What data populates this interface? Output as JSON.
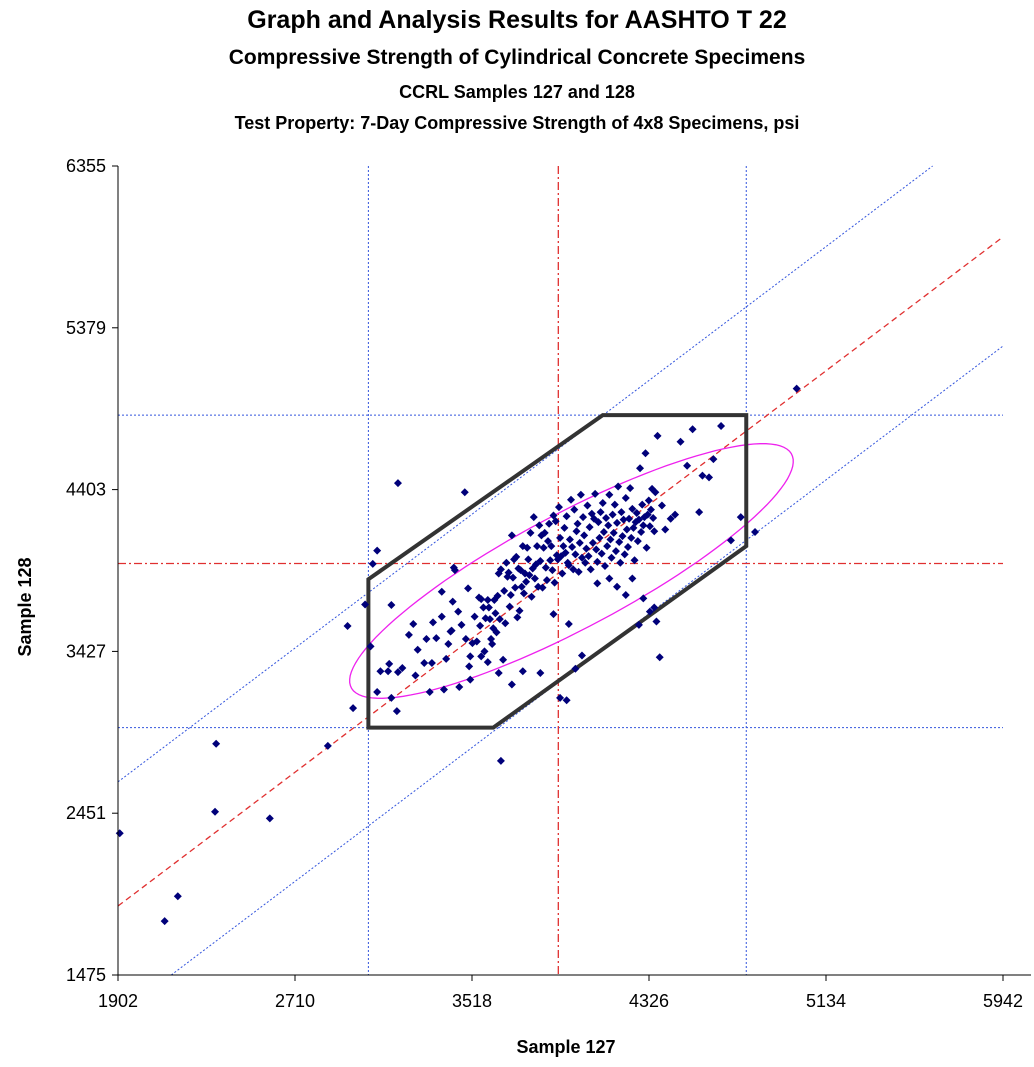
{
  "chart_data": {
    "type": "scatter",
    "title": "Graph and Analysis Results for AASHTO T 22",
    "subtitle": "Compressive Strength of Cylindrical Concrete Specimens",
    "subtitle2": "CCRL Samples 127 and 128",
    "subtitle3": "Test Property: 7-Day Compressive Strength of 4x8 Specimens, psi",
    "xlabel": "Sample 127",
    "ylabel": "Sample 128",
    "xlim": [
      1902,
      5942
    ],
    "ylim": [
      1475,
      6355
    ],
    "xticks": [
      "1902",
      "2710",
      "3518",
      "4326",
      "5134",
      "5942"
    ],
    "yticks": [
      "1475",
      "2451",
      "3427",
      "4403",
      "5379",
      "6355"
    ],
    "grid": false,
    "colors": {
      "points": "#00007a",
      "median": "#e03030",
      "limit": "#3355dd",
      "ellipse": "#ee22ee",
      "polygon": "#333333"
    },
    "median": {
      "x": 3912,
      "y": 3957
    },
    "limits": {
      "x": [
        3045,
        4770
      ],
      "y": [
        2967,
        4852
      ]
    },
    "polygon": [
      [
        3045,
        2967
      ],
      [
        3615,
        2967
      ],
      [
        4770,
        4062
      ],
      [
        4770,
        4852
      ],
      [
        4115,
        4852
      ],
      [
        3045,
        3862
      ]
    ],
    "ellipse": {
      "cx": 3972,
      "cy": 3912,
      "rx": 1230,
      "ry": 320,
      "angle_deg": 36
    },
    "lines": [
      {
        "kind": "median",
        "from": [
          1902,
          1891
        ],
        "to": [
          5942,
          5927
        ]
      },
      {
        "kind": "limit-upper",
        "from": [
          1902,
          2640
        ],
        "to": [
          5942,
          6676
        ]
      },
      {
        "kind": "limit-lower",
        "from": [
          2145,
          1475
        ],
        "to": [
          5942,
          5269
        ]
      }
    ],
    "points": [
      [
        1910,
        2330
      ],
      [
        2115,
        1800
      ],
      [
        2175,
        1950
      ],
      [
        2350,
        2870
      ],
      [
        2345,
        2460
      ],
      [
        2595,
        2420
      ],
      [
        2860,
        2857
      ],
      [
        2950,
        3580
      ],
      [
        2975,
        3085
      ],
      [
        3030,
        3710
      ],
      [
        3055,
        3457
      ],
      [
        3085,
        3182
      ],
      [
        3065,
        3955
      ],
      [
        3085,
        4035
      ],
      [
        3100,
        3307
      ],
      [
        3135,
        3307
      ],
      [
        3140,
        3352
      ],
      [
        3150,
        3707
      ],
      [
        3175,
        3067
      ],
      [
        3180,
        3302
      ],
      [
        3200,
        3327
      ],
      [
        3230,
        3527
      ],
      [
        3260,
        3282
      ],
      [
        3250,
        3592
      ],
      [
        3270,
        3437
      ],
      [
        3300,
        3357
      ],
      [
        3310,
        3502
      ],
      [
        3325,
        3182
      ],
      [
        3335,
        3357
      ],
      [
        3340,
        3602
      ],
      [
        3355,
        3507
      ],
      [
        3380,
        3637
      ],
      [
        3380,
        3787
      ],
      [
        3400,
        3382
      ],
      [
        3410,
        3472
      ],
      [
        3420,
        3547
      ],
      [
        3425,
        3552
      ],
      [
        3430,
        3727
      ],
      [
        3435,
        3932
      ],
      [
        3440,
        3917
      ],
      [
        3455,
        3667
      ],
      [
        3470,
        3587
      ],
      [
        3485,
        4387
      ],
      [
        3490,
        3502
      ],
      [
        3500,
        3807
      ],
      [
        3505,
        3337
      ],
      [
        3510,
        3397
      ],
      [
        3520,
        3477
      ],
      [
        3530,
        3637
      ],
      [
        3540,
        3487
      ],
      [
        3550,
        3752
      ],
      [
        3555,
        3582
      ],
      [
        3560,
        3742
      ],
      [
        3570,
        3692
      ],
      [
        3575,
        3427
      ],
      [
        3580,
        3627
      ],
      [
        3590,
        3737
      ],
      [
        3595,
        3692
      ],
      [
        3600,
        3622
      ],
      [
        3605,
        3502
      ],
      [
        3610,
        3472
      ],
      [
        3615,
        3567
      ],
      [
        3620,
        3737
      ],
      [
        3625,
        3657
      ],
      [
        3630,
        3542
      ],
      [
        3635,
        3762
      ],
      [
        3640,
        3897
      ],
      [
        3645,
        3622
      ],
      [
        3650,
        3922
      ],
      [
        3660,
        3377
      ],
      [
        3665,
        3792
      ],
      [
        3670,
        3597
      ],
      [
        3675,
        3962
      ],
      [
        3680,
        3877
      ],
      [
        3685,
        3902
      ],
      [
        3690,
        3697
      ],
      [
        3695,
        3767
      ],
      [
        3700,
        4127
      ],
      [
        3705,
        3872
      ],
      [
        3710,
        3982
      ],
      [
        3715,
        3812
      ],
      [
        3720,
        3997
      ],
      [
        3725,
        3632
      ],
      [
        3730,
        3927
      ],
      [
        3735,
        3672
      ],
      [
        3740,
        3917
      ],
      [
        3745,
        3817
      ],
      [
        3750,
        4062
      ],
      [
        3755,
        3777
      ],
      [
        3760,
        3897
      ],
      [
        3765,
        3847
      ],
      [
        3770,
        4052
      ],
      [
        3775,
        3982
      ],
      [
        3780,
        3887
      ],
      [
        3785,
        4142
      ],
      [
        3790,
        3757
      ],
      [
        3795,
        3927
      ],
      [
        3800,
        4237
      ],
      [
        3805,
        3867
      ],
      [
        3810,
        3952
      ],
      [
        3815,
        4062
      ],
      [
        3820,
        3817
      ],
      [
        3825,
        4187
      ],
      [
        3830,
        3972
      ],
      [
        3835,
        4127
      ],
      [
        3840,
        3812
      ],
      [
        3845,
        4052
      ],
      [
        3850,
        4142
      ],
      [
        3855,
        3932
      ],
      [
        3860,
        3857
      ],
      [
        3865,
        4092
      ],
      [
        3870,
        4197
      ],
      [
        3875,
        3977
      ],
      [
        3880,
        4062
      ],
      [
        3885,
        3917
      ],
      [
        3890,
        4247
      ],
      [
        3895,
        3842
      ],
      [
        3900,
        4212
      ],
      [
        3905,
        4007
      ],
      [
        3910,
        3982
      ],
      [
        3915,
        4297
      ],
      [
        3920,
        4112
      ],
      [
        3925,
        4002
      ],
      [
        3930,
        3897
      ],
      [
        3935,
        4062
      ],
      [
        3940,
        4172
      ],
      [
        3945,
        4022
      ],
      [
        3950,
        4242
      ],
      [
        3955,
        3962
      ],
      [
        3960,
        3947
      ],
      [
        3965,
        4102
      ],
      [
        3970,
        4342
      ],
      [
        3975,
        4057
      ],
      [
        3980,
        3922
      ],
      [
        3985,
        4282
      ],
      [
        3990,
        4012
      ],
      [
        3995,
        4152
      ],
      [
        4000,
        4197
      ],
      [
        4005,
        3907
      ],
      [
        4010,
        4082
      ],
      [
        4015,
        4372
      ],
      [
        4020,
        3992
      ],
      [
        4025,
        4237
      ],
      [
        4030,
        4127
      ],
      [
        4035,
        3962
      ],
      [
        4040,
        4047
      ],
      [
        4045,
        4307
      ],
      [
        4050,
        4002
      ],
      [
        4055,
        4177
      ],
      [
        4060,
        3922
      ],
      [
        4065,
        4257
      ],
      [
        4070,
        4082
      ],
      [
        4075,
        4227
      ],
      [
        4080,
        4377
      ],
      [
        4085,
        4042
      ],
      [
        4090,
        3967
      ],
      [
        4095,
        4207
      ],
      [
        4100,
        4112
      ],
      [
        4105,
        4267
      ],
      [
        4110,
        4017
      ],
      [
        4115,
        4322
      ],
      [
        4120,
        4147
      ],
      [
        4125,
        3942
      ],
      [
        4130,
        4232
      ],
      [
        4135,
        4062
      ],
      [
        4140,
        4187
      ],
      [
        4145,
        4372
      ],
      [
        4150,
        4102
      ],
      [
        4155,
        3992
      ],
      [
        4160,
        4252
      ],
      [
        4165,
        4142
      ],
      [
        4170,
        4312
      ],
      [
        4175,
        4032
      ],
      [
        4180,
        4202
      ],
      [
        4185,
        4422
      ],
      [
        4190,
        4087
      ],
      [
        4195,
        3962
      ],
      [
        4200,
        4267
      ],
      [
        4205,
        4122
      ],
      [
        4210,
        4222
      ],
      [
        4215,
        4012
      ],
      [
        4220,
        4352
      ],
      [
        4225,
        4162
      ],
      [
        4230,
        4057
      ],
      [
        4235,
        4227
      ],
      [
        4240,
        4412
      ],
      [
        4245,
        4112
      ],
      [
        4250,
        4287
      ],
      [
        4255,
        4172
      ],
      [
        4260,
        3977
      ],
      [
        4265,
        4207
      ],
      [
        4270,
        4262
      ],
      [
        4275,
        4092
      ],
      [
        4280,
        4222
      ],
      [
        4285,
        4532
      ],
      [
        4290,
        4147
      ],
      [
        4295,
        4312
      ],
      [
        4300,
        4187
      ],
      [
        4305,
        4237
      ],
      [
        4310,
        4622
      ],
      [
        4315,
        4052
      ],
      [
        4320,
        4252
      ],
      [
        4325,
        4337
      ],
      [
        4330,
        4182
      ],
      [
        4335,
        4282
      ],
      [
        4340,
        4407
      ],
      [
        4345,
        4232
      ],
      [
        4350,
        4152
      ],
      [
        4355,
        4387
      ],
      [
        4365,
        4727
      ],
      [
        4385,
        4307
      ],
      [
        4400,
        4162
      ],
      [
        4425,
        4227
      ],
      [
        4445,
        4252
      ],
      [
        4470,
        4692
      ],
      [
        4500,
        4547
      ],
      [
        4525,
        4767
      ],
      [
        4555,
        4267
      ],
      [
        4570,
        4487
      ],
      [
        4600,
        4477
      ],
      [
        4620,
        4587
      ],
      [
        4655,
        4787
      ],
      [
        4700,
        4097
      ],
      [
        4745,
        4237
      ],
      [
        4810,
        4147
      ],
      [
        5000,
        5012
      ],
      [
        3920,
        3147
      ],
      [
        3950,
        3132
      ],
      [
        3750,
        3307
      ],
      [
        3700,
        3227
      ],
      [
        3640,
        3297
      ],
      [
        3590,
        3362
      ],
      [
        3560,
        3397
      ],
      [
        3510,
        3257
      ],
      [
        3460,
        3212
      ],
      [
        3390,
        3197
      ],
      [
        3650,
        2767
      ],
      [
        3830,
        3297
      ],
      [
        3180,
        4442
      ],
      [
        3150,
        3147
      ],
      [
        3990,
        3322
      ],
      [
        4020,
        3402
      ],
      [
        3960,
        3592
      ],
      [
        3890,
        3652
      ],
      [
        4180,
        3817
      ],
      [
        4220,
        3767
      ],
      [
        4250,
        3867
      ],
      [
        4300,
        3747
      ],
      [
        4350,
        3692
      ],
      [
        4360,
        3607
      ],
      [
        4375,
        3392
      ],
      [
        4330,
        3667
      ],
      [
        4280,
        3587
      ],
      [
        4145,
        3867
      ],
      [
        4090,
        3837
      ]
    ]
  }
}
